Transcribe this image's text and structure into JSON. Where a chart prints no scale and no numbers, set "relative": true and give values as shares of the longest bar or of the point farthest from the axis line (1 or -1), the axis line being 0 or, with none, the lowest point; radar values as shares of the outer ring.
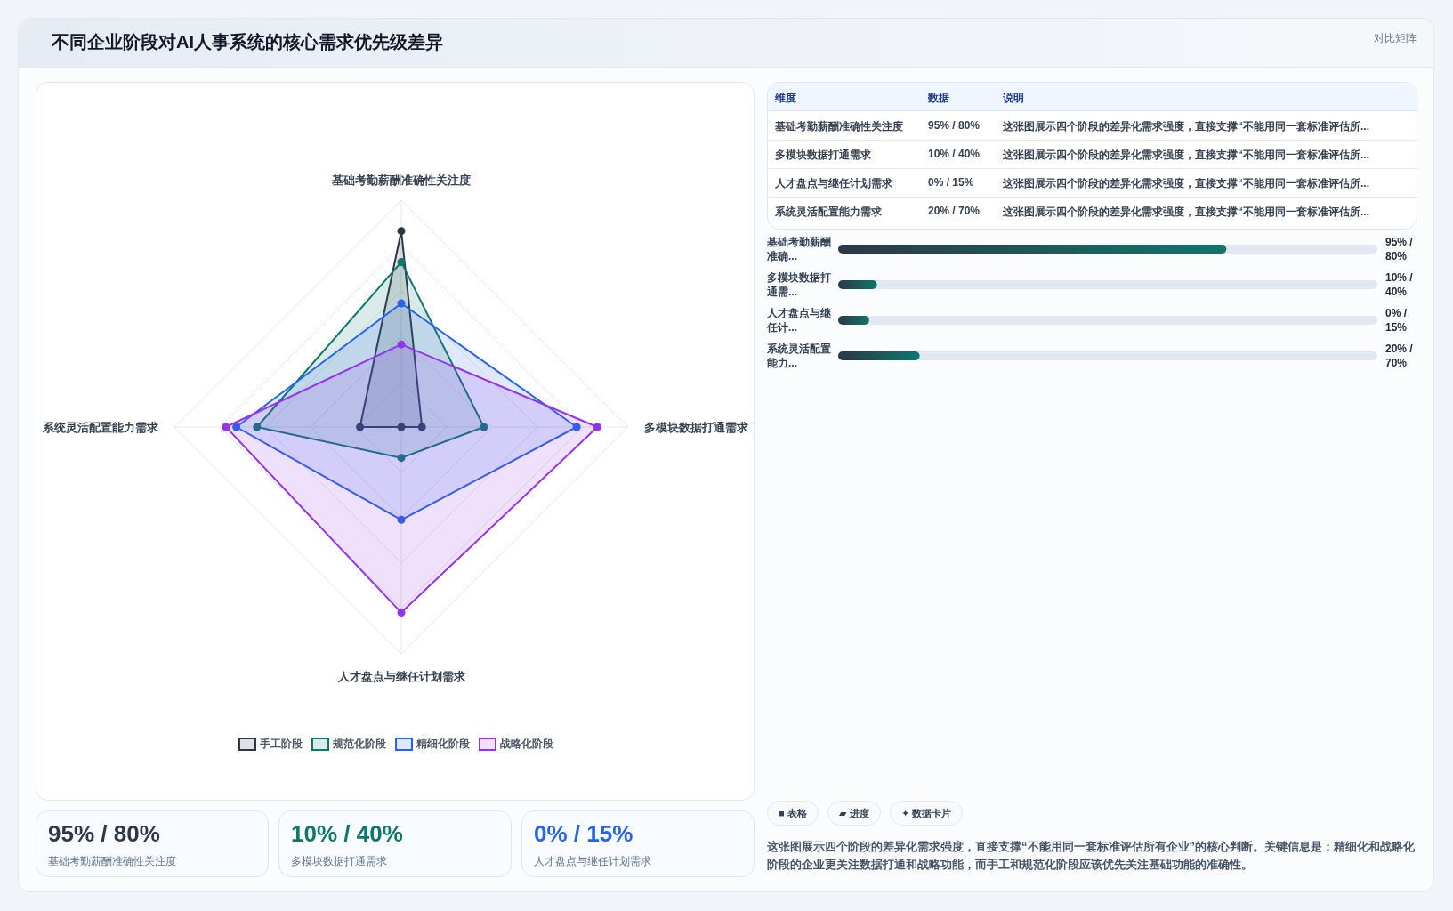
{
  "chart_data": [
    {
      "type": "other",
      "title": "不同企业阶段对AI人事系统的核心需求优先级差异",
      "annotations": [
        "对比矩阵"
      ]
    },
    {
      "type": "radar",
      "categories": [
        "基础考勤薪酬准确性关注度",
        "多模块数据打通需求",
        "人才盘点与继任计划需求",
        "系统灵活配置能力需求"
      ],
      "relative": true,
      "grid": true,
      "legend": "bottom",
      "marker": "circle",
      "series": [
        {
          "name": "手工阶段",
          "color": "#2d3748",
          "values": [
            0.864,
            0.091,
            0,
            0.182
          ]
        },
        {
          "name": "规范化阶段",
          "color": "#0f766e",
          "values": [
            0.727,
            0.364,
            0.136,
            0.636
          ]
        },
        {
          "name": "精细化阶段",
          "color": "#2563eb",
          "values": [
            0.545,
            0.773,
            0.409,
            0.727
          ]
        },
        {
          "name": "战略化阶段",
          "color": "#9333ea",
          "values": [
            0.364,
            0.864,
            0.818,
            0.773
          ]
        }
      ]
    },
    {
      "type": "other",
      "annotations": [
        "维度",
        "数据",
        "说明",
        "基础考勤薪酬准确性关注度",
        "95% / 80%",
        "这张图展示四个阶段的差异化需求强度，直接支撑“不能用同一套标准评估所...",
        "多模块数据打通需求",
        "10% / 40%",
        "这张图展示四个阶段的差异化需求强度，直接支撑“不能用同一套标准评估所...",
        "人才盘点与继任计划需求",
        "0% / 15%",
        "这张图展示四个阶段的差异化需求强度，直接支撑“不能用同一套标准评估所...",
        "系统灵活配置能力需求",
        "20% / 70%",
        "这张图展示四个阶段的差异化需求强度，直接支撑“不能用同一套标准评估所..."
      ]
    },
    {
      "type": "bar",
      "orientation": "horizontal",
      "relative": true,
      "color": "#0f766e",
      "categories": [
        "基础考勤薪酬准确...",
        "多模块数据打通需...",
        "人才盘点与继任计...",
        "系统灵活配置能力..."
      ],
      "values": [
        1,
        0.1,
        0.08,
        0.21
      ],
      "annotations": [
        "95% / 80%",
        "10% / 40%",
        "0% / 15%",
        "20% / 70%"
      ]
    },
    {
      "type": "other",
      "annotations": [
        "■ 表格",
        "▰ 进度",
        "✦ 数据卡片",
        "这张图展示四个阶段的差异化需求强度，直接支撑“不能用同一套标准评估所有企业”的核心判断。关键信息是：精细化和战略化阶段的企业更关注数据打通和战略功能，而手工和规范化阶段应该优先关注基础功能的准确性。"
      ]
    },
    {
      "type": "other",
      "colors": [
        "#2d3748",
        "#0f766e",
        "#2563eb"
      ],
      "annotations": [
        "95% / 80%",
        "基础考勤薪酬准确性关注度",
        "10% / 40%",
        "多模块数据打通需求",
        "0% / 15%",
        "人才盘点与继任计划需求"
      ]
    }
  ]
}
